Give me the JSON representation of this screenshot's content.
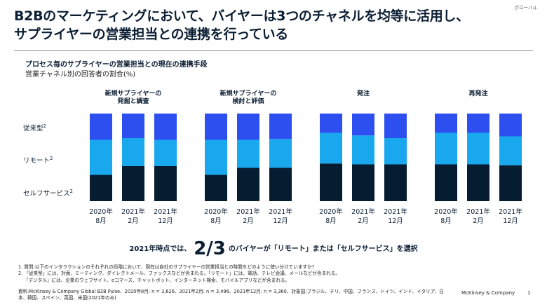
{
  "tag": "グローバル",
  "headline": [
    "B2Bのマーケティングにおいて、バイヤーは3つのチャネルを均等に活用し、",
    "サプライヤーの営業担当との連携を行っている"
  ],
  "colors": {
    "traditional": "#2e4fef",
    "remote": "#19a7ee",
    "selfservice": "#061c30"
  },
  "chart_data": {
    "type": "bar",
    "stacked": true,
    "title": "プロセス毎のサプライヤーの営業担当との現在の連携手段",
    "subtitle": "営業チャネル別の回答者の割合(%)",
    "row_labels": [
      {
        "name": "従来型",
        "sup": "2"
      },
      {
        "name": "リモート",
        "sup": "2"
      },
      {
        "name": "セルフサービス",
        "sup": "2"
      }
    ],
    "ylim": [
      0,
      100
    ],
    "groups": [
      {
        "title": [
          "新規サプライヤーの",
          "発掘と調査"
        ],
        "categories": [
          [
            "2020年",
            "8月"
          ],
          [
            "2021年",
            "2月"
          ],
          [
            "2021年",
            "12月"
          ]
        ],
        "series": [
          {
            "name": "セルフサービス",
            "values": [
              30,
              40,
              40
            ]
          },
          {
            "name": "リモート",
            "values": [
              40,
              32,
              30
            ]
          },
          {
            "name": "従来型",
            "values": [
              30,
              28,
              30
            ]
          }
        ]
      },
      {
        "title": [
          "新規サプライヤーの",
          "検討と評価"
        ],
        "categories": [
          [
            "2020年",
            "8月"
          ],
          [
            "2021年",
            "2月"
          ],
          [
            "2021年",
            "12月"
          ]
        ],
        "series": [
          {
            "name": "セルフサービス",
            "values": [
              30,
              38,
              38
            ]
          },
          {
            "name": "リモート",
            "values": [
              40,
              32,
              33
            ]
          },
          {
            "name": "従来型",
            "values": [
              30,
              30,
              29
            ]
          }
        ]
      },
      {
        "title": [
          "発注"
        ],
        "categories": [
          [
            "2020年",
            "8月"
          ],
          [
            "2021年",
            "2月"
          ],
          [
            "2021年",
            "12月"
          ]
        ],
        "series": [
          {
            "name": "セルフサービス",
            "values": [
              43,
              42,
              42
            ]
          },
          {
            "name": "リモート",
            "values": [
              35,
              33,
              30
            ]
          },
          {
            "name": "従来型",
            "values": [
              22,
              25,
              28
            ]
          }
        ]
      },
      {
        "title": [
          "再発注"
        ],
        "categories": [
          [
            "2020年",
            "8月"
          ],
          [
            "2021年",
            "2月"
          ],
          [
            "2021年",
            "12月"
          ]
        ],
        "series": [
          {
            "name": "セルフサービス",
            "values": [
              42,
              42,
              41
            ]
          },
          {
            "name": "リモート",
            "values": [
              36,
              36,
              33
            ]
          },
          {
            "name": "従来型",
            "values": [
              22,
              22,
              26
            ]
          }
        ]
      }
    ]
  },
  "callout": {
    "pre": "2021年時点では、",
    "big": "2/3",
    "post": "のバイヤーが「リモート」または「セルフサービス」を選択"
  },
  "notes": [
    "1. 質問:以下のインタラクションのそれぞれの段階において、現在は自社のサプライヤーの営業担当との時間をどのように使い分けていますか?",
    "2. 「従来型」には、対面、ミーティング、ダイレクトメール、ファックスなどが含まれる。「リモート」には、電話、テレビ会議、メールなどが含まれる。",
    "「デジタル」には、企業のウェブサイト、eコマース、チャットボット、インターネット検索、モバイルアプリなどが含まれる。"
  ],
  "source": "資料:McKinsey & Company Global B2B Pulse、2020年8月: n = 3,626、2021年2月: n = 3,496、2021年12月: n = 3,360、対象国:ブラジル、チリ、中国、フランス、ドイツ、インド、イタリア、日本、韓国、スペイン、英国、米国(2021年のみ)",
  "brand": "McKinsey & Company",
  "page": "1"
}
